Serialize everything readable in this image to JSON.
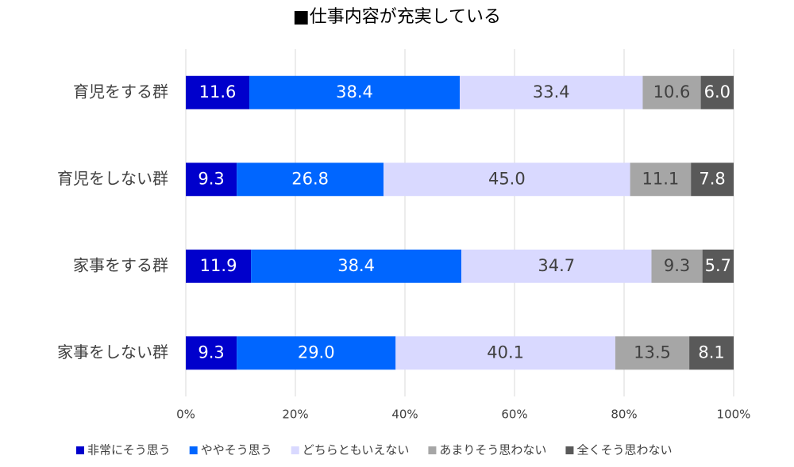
{
  "chart_data": {
    "type": "stacked-bar-horizontal",
    "title": "■仕事内容が充実している",
    "categories": [
      "育児をする群",
      "育児をしない群",
      "家事をする群",
      "家事をしない群"
    ],
    "series": [
      {
        "name": "非常にそう思う",
        "color": "#0000cc",
        "values": [
          11.6,
          9.3,
          11.9,
          9.3
        ],
        "value_labels": [
          "11.6",
          "9.3",
          "11.9",
          "9.3"
        ]
      },
      {
        "name": "ややそう思う",
        "color": "#0066ff",
        "values": [
          38.4,
          26.8,
          38.4,
          29.0
        ],
        "value_labels": [
          "38.4",
          "26.8",
          "38.4",
          "29.0"
        ]
      },
      {
        "name": "どちらともいえない",
        "color": "#d9d9ff",
        "values": [
          33.4,
          45.0,
          34.7,
          40.1
        ],
        "value_labels": [
          "33.4",
          "45.0",
          "34.7",
          "40.1"
        ]
      },
      {
        "name": "あまりそう思わない",
        "color": "#a6a6a6",
        "values": [
          10.6,
          11.1,
          9.3,
          13.5
        ],
        "value_labels": [
          "10.6",
          "11.1",
          "9.3",
          "13.5"
        ]
      },
      {
        "name": "全くそう思わない",
        "color": "#595959",
        "values": [
          6.0,
          7.8,
          5.7,
          8.1
        ],
        "value_labels": [
          "6.0",
          "7.8",
          "5.7",
          "8.1"
        ]
      }
    ],
    "xlim": [
      0,
      100
    ],
    "xticks": [
      {
        "value": 0,
        "label": "0%"
      },
      {
        "value": 20,
        "label": "20%"
      },
      {
        "value": 40,
        "label": "40%"
      },
      {
        "value": 60,
        "label": "60%"
      },
      {
        "value": 80,
        "label": "80%"
      },
      {
        "value": 100,
        "label": "100%"
      }
    ],
    "grid": true,
    "legend": "bottom"
  }
}
